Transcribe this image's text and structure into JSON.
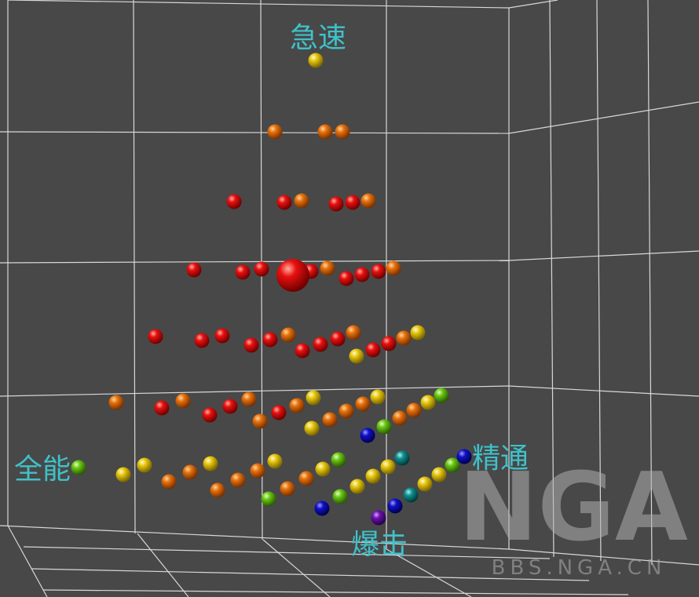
{
  "labels": {
    "top": "急速",
    "left": "全能",
    "right": "精通",
    "bottom": "爆击"
  },
  "watermark": {
    "logo": "NGA",
    "site": "BBS.NGA.CN"
  }
}
